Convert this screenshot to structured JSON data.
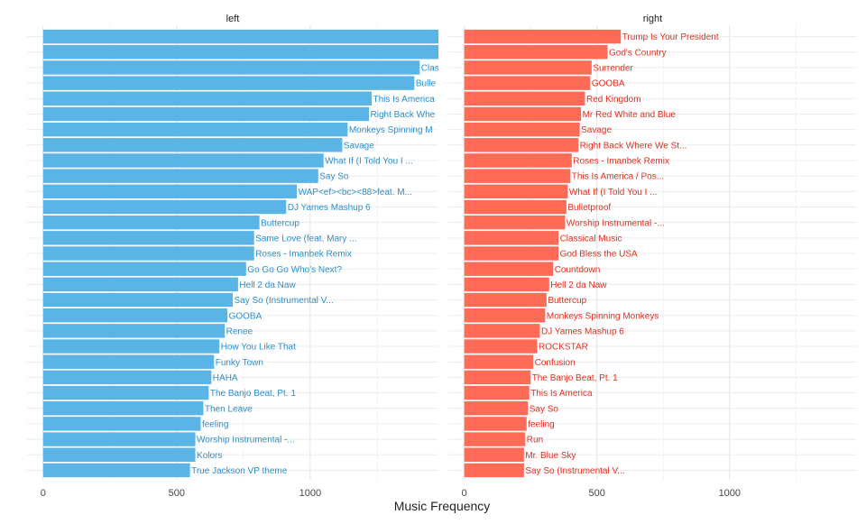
{
  "chart_data": {
    "type": "bar",
    "orientation": "horizontal",
    "faceted": true,
    "xlabel": "Music Frequency",
    "ylabel": "",
    "grid": true,
    "x_ticks": [
      0,
      500,
      1000
    ],
    "xlim": [
      -60,
      1480
    ],
    "panels": [
      {
        "title": "left",
        "color": "#5AB4E6",
        "label_color": "#2C8FCB",
        "categories": [
          "",
          "",
          "Clas",
          "Bulle",
          "This Is America",
          "Right Back Whe",
          "Monkeys Spinning M",
          "Savage",
          "What If (I Told You I ...",
          "Say So",
          "WAP<ef><bc><88>feat. M...",
          "DJ Yames Mashup 6",
          "Buttercup",
          "Same Love (feat. Mary ...",
          "Roses - Imanbek Remix",
          "Go Go Go Who's Next?",
          "Hell 2 da Naw",
          "Say So (Instrumental V...",
          "GOOBA",
          "Renee",
          "How You Like That",
          "Funky Town",
          "HAHA",
          "The Banjo Beat, Pt. 1",
          "Then Leave",
          "feeling",
          "Worship Instrumental -...",
          "Kolors",
          "True Jackson VP theme"
        ],
        "values": [
          1480,
          1480,
          1410,
          1390,
          1230,
          1220,
          1140,
          1120,
          1050,
          1030,
          950,
          910,
          810,
          790,
          790,
          760,
          730,
          710,
          690,
          680,
          660,
          640,
          630,
          620,
          600,
          590,
          570,
          570,
          550
        ]
      },
      {
        "title": "right",
        "color": "#FF6B57",
        "label_color": "#E0301E",
        "categories": [
          "Trump Is Your President",
          "God's Country",
          "Surrender",
          "GOOBA",
          "Red Kingdom",
          "Mr Red White and Blue",
          "Savage",
          "Right Back Where We St...",
          "Roses - Imanbek Remix",
          "This Is America / Pos...",
          "What If (I Told You I ...",
          "Bulletproof",
          "Worship Instrumental -...",
          "Classical Music",
          "God Bless the USA",
          "Countdown",
          "Hell 2 da Naw",
          "Buttercup",
          "Monkeys Spinning Monkeys",
          "DJ Yames Mashup 6",
          "ROCKSTAR",
          "Confusion",
          "The Banjo Beat, Pt. 1",
          "This Is America",
          "Say So",
          "feeling",
          "Run",
          "Mr. Blue Sky",
          "Say So (Instrumental V..."
        ],
        "values": [
          590,
          540,
          480,
          475,
          455,
          440,
          435,
          430,
          405,
          400,
          390,
          385,
          380,
          355,
          355,
          335,
          320,
          310,
          305,
          285,
          275,
          260,
          250,
          245,
          240,
          235,
          230,
          225,
          225
        ]
      }
    ]
  }
}
